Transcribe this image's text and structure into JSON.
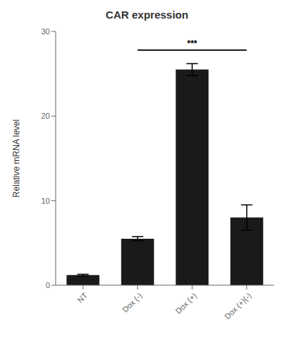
{
  "chart_data": {
    "type": "bar",
    "title": "CAR expression",
    "categories": [
      "NT",
      "Dox (-)",
      "Dox (+)",
      "Dox (+)(-)"
    ],
    "values": [
      1.2,
      5.5,
      25.5,
      8.0
    ],
    "errors": [
      0.1,
      0.25,
      0.7,
      1.5
    ],
    "color": "#1a1a1a",
    "ylabel": "Relative mRNA level",
    "ylim": [
      0,
      30
    ],
    "yticks": [
      0,
      10,
      20,
      30
    ],
    "grid": false,
    "annotations": [
      {
        "text": "***",
        "from": "Dox (-)",
        "to": "Dox (+)(-)",
        "y": 27.8
      }
    ]
  }
}
